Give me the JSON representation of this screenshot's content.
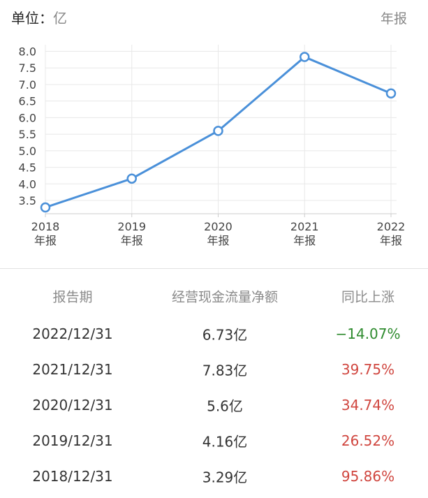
{
  "header": {
    "unit_prefix": "单位：",
    "unit_value": "亿",
    "period": "年报"
  },
  "chart_data": {
    "type": "line",
    "x": [
      "2018\n年报",
      "2019\n年报",
      "2020\n年报",
      "2021\n年报",
      "2022\n年报"
    ],
    "y_ticks": [
      "3.5",
      "4.0",
      "4.5",
      "5.0",
      "5.5",
      "6.0",
      "6.5",
      "7.0",
      "7.5",
      "8.0"
    ],
    "ylim": [
      3.1,
      8.2
    ],
    "series": [
      {
        "values": [
          3.29,
          4.16,
          5.6,
          7.83,
          6.73
        ]
      }
    ],
    "grid": true,
    "colors": {
      "line": "#4a90d9",
      "grid": "#e8e8e8",
      "axis": "#cccccc",
      "tick_text": "#444444"
    }
  },
  "table": {
    "headers": [
      "报告期",
      "经营现金流量净额",
      "同比上涨"
    ],
    "rows": [
      {
        "date": "2022/12/31",
        "value": "6.73亿",
        "change": "−14.07%",
        "color": "#2e8b2e"
      },
      {
        "date": "2021/12/31",
        "value": "7.83亿",
        "change": "39.75%",
        "color": "#d0463f"
      },
      {
        "date": "2020/12/31",
        "value": "5.6亿",
        "change": "34.74%",
        "color": "#d0463f"
      },
      {
        "date": "2019/12/31",
        "value": "4.16亿",
        "change": "26.52%",
        "color": "#d0463f"
      },
      {
        "date": "2018/12/31",
        "value": "3.29亿",
        "change": "95.86%",
        "color": "#d0463f"
      }
    ]
  }
}
